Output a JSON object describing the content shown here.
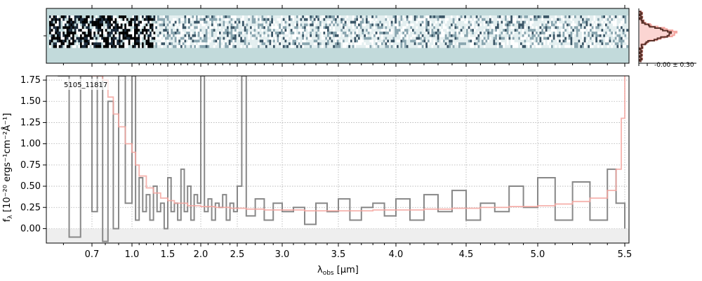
{
  "chart_data": [
    {
      "panel": "2d-spectrum",
      "type": "heatmap",
      "colormap": [
        "#c2dadb",
        "#ffffff",
        "#1a2a3a",
        "#000000"
      ],
      "description_rows": 8
    },
    {
      "panel": "spatial-profile",
      "type": "line",
      "annotation": "-0.00 ± 0.30",
      "series": [
        {
          "color": "#f4a6a0",
          "fill": "#fbd5d2"
        },
        {
          "color": "#5a3028"
        }
      ]
    },
    {
      "panel": "1d-spectrum",
      "type": "line",
      "label": "5105_11817",
      "xlabel_main": "λ",
      "xlabel_sub": "obs",
      "xlabel_unit": " [μm]",
      "ylabel_main": "f",
      "ylabel_sub": "λ",
      "ylabel_unit": " [10⁻²⁰ ergs⁻¹cm⁻²Å⁻¹]",
      "xlim": [
        0.54,
        5.52
      ],
      "ylim": [
        -0.17,
        1.8
      ],
      "x_ticks": [
        0.7,
        1.0,
        1.5,
        2.0,
        2.5,
        3.0,
        3.5,
        4.0,
        4.5,
        5.0,
        5.5
      ],
      "x_tick_labels": [
        "0.7",
        "1.0",
        "1.5",
        "2.0",
        "2.5",
        "3.0",
        "3.5",
        "4.0",
        "4.5",
        "5.0",
        "5.5"
      ],
      "y_ticks": [
        0.0,
        0.25,
        0.5,
        0.75,
        1.0,
        1.25,
        1.5,
        1.75
      ],
      "y_tick_labels": [
        "0.00",
        "0.25",
        "0.50",
        "0.75",
        "1.00",
        "1.25",
        "1.50",
        "1.75"
      ],
      "grid": true,
      "series": [
        {
          "role": "flux",
          "color": "#888888",
          "x": [
            0.58,
            0.62,
            0.66,
            0.7,
            0.74,
            0.78,
            0.82,
            0.86,
            0.9,
            0.95,
            1.0,
            1.05,
            1.1,
            1.15,
            1.2,
            1.25,
            1.3,
            1.35,
            1.4,
            1.45,
            1.5,
            1.55,
            1.6,
            1.65,
            1.7,
            1.75,
            1.8,
            1.85,
            1.9,
            1.95,
            2.0,
            2.05,
            2.1,
            2.15,
            2.2,
            2.25,
            2.3,
            2.35,
            2.4,
            2.45,
            2.5,
            2.55,
            2.6,
            2.7,
            2.8,
            2.9,
            3.0,
            3.1,
            3.2,
            3.3,
            3.4,
            3.5,
            3.6,
            3.7,
            3.8,
            3.9,
            4.0,
            4.1,
            4.2,
            4.3,
            4.4,
            4.5,
            4.6,
            4.7,
            4.8,
            4.9,
            5.0,
            5.1,
            5.2,
            5.3,
            5.4,
            5.45,
            5.5
          ],
          "y": [
            1.8,
            -0.1,
            1.8,
            0.2,
            1.8,
            -0.15,
            1.5,
            0.0,
            1.8,
            0.3,
            1.8,
            0.1,
            0.6,
            0.2,
            0.4,
            0.1,
            0.5,
            0.2,
            0.3,
            0.0,
            0.6,
            0.2,
            0.3,
            0.1,
            0.7,
            0.2,
            0.5,
            0.1,
            0.4,
            0.3,
            1.8,
            0.2,
            0.35,
            0.1,
            0.3,
            0.25,
            0.4,
            0.1,
            0.3,
            0.2,
            0.5,
            1.8,
            0.15,
            0.35,
            0.1,
            0.3,
            0.2,
            0.25,
            0.05,
            0.3,
            0.2,
            0.35,
            0.1,
            0.25,
            0.3,
            0.15,
            0.35,
            0.1,
            0.4,
            0.2,
            0.45,
            0.1,
            0.3,
            0.2,
            0.5,
            0.25,
            0.6,
            0.1,
            0.55,
            0.1,
            0.7,
            0.3,
            0.0
          ]
        },
        {
          "role": "model",
          "color": "#f4a6a0",
          "x": [
            0.7,
            0.78,
            0.82,
            0.86,
            0.9,
            0.95,
            1.0,
            1.05,
            1.1,
            1.2,
            1.3,
            1.4,
            1.5,
            1.6,
            1.8,
            2.0,
            2.2,
            2.4,
            2.6,
            2.8,
            3.0,
            3.2,
            3.4,
            3.6,
            3.8,
            4.0,
            4.2,
            4.4,
            4.6,
            4.8,
            5.0,
            5.1,
            5.2,
            5.3,
            5.4,
            5.45,
            5.48,
            5.5
          ],
          "y": [
            1.8,
            1.75,
            1.55,
            1.35,
            1.2,
            1.0,
            0.9,
            0.75,
            0.62,
            0.48,
            0.42,
            0.36,
            0.33,
            0.3,
            0.27,
            0.26,
            0.25,
            0.24,
            0.23,
            0.22,
            0.22,
            0.21,
            0.21,
            0.21,
            0.22,
            0.22,
            0.23,
            0.24,
            0.25,
            0.26,
            0.27,
            0.29,
            0.32,
            0.36,
            0.45,
            0.7,
            1.3,
            1.8
          ]
        }
      ]
    }
  ]
}
